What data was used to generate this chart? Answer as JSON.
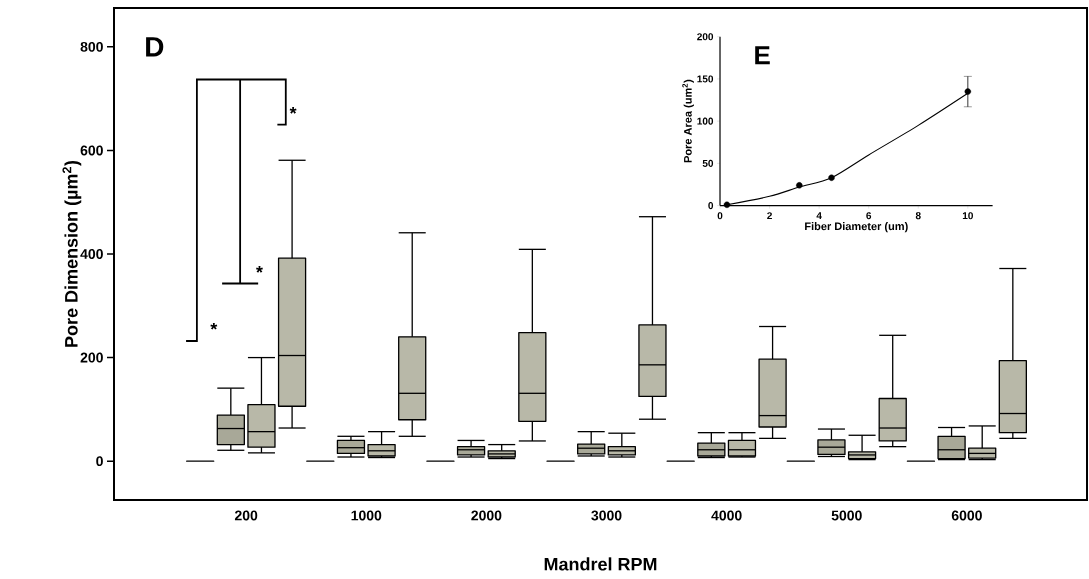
{
  "chart_data": [
    {
      "type": "box",
      "xlabel": "Mandrel RPM",
      "ylabel": "Pore Dimension (µm$^{2}$)",
      "categories": [
        "200",
        "1000",
        "2000",
        "3000",
        "4000",
        "5000",
        "6000"
      ],
      "ylim": [
        -75,
        875
      ],
      "yticks": [
        0,
        200,
        400,
        600,
        800
      ],
      "grid": false,
      "annotations": [
        "D",
        "*",
        "*",
        "*"
      ],
      "series": [
        {
          "color": "#000000",
          "boxes": [
            {
              "low": 0,
              "q1": 0,
              "median": 0,
              "q3": 0,
              "high": 0
            },
            {
              "low": 0,
              "q1": 0,
              "median": 0,
              "q3": 0,
              "high": 0
            },
            {
              "low": 0,
              "q1": 0,
              "median": 0,
              "q3": 0,
              "high": 0
            },
            {
              "low": 0,
              "q1": 0,
              "median": 0,
              "q3": 0,
              "high": 0
            },
            {
              "low": 0,
              "q1": 0,
              "median": 0,
              "q3": 0,
              "high": 0
            },
            {
              "low": 0,
              "q1": 0,
              "median": 0,
              "q3": 0,
              "high": 0
            },
            {
              "low": 0,
              "q1": 0,
              "median": 0,
              "q3": 0,
              "high": 0
            }
          ]
        },
        {
          "color": "#a8a898",
          "boxes": [
            {
              "low": 21,
              "q1": 32,
              "median": 63,
              "q3": 89,
              "high": 141
            },
            {
              "low": 8,
              "q1": 15,
              "median": 26,
              "q3": 40,
              "high": 48
            },
            {
              "low": 8,
              "q1": 12,
              "median": 22,
              "q3": 28,
              "high": 40
            },
            {
              "low": 10,
              "q1": 14,
              "median": 25,
              "q3": 33,
              "high": 57
            },
            {
              "low": 7,
              "q1": 10,
              "median": 22,
              "q3": 35,
              "high": 55
            },
            {
              "low": 9,
              "q1": 13,
              "median": 27,
              "q3": 41,
              "high": 62
            },
            {
              "low": 3,
              "q1": 5,
              "median": 22,
              "q3": 48,
              "high": 65
            }
          ]
        },
        {
          "color": "#b8b8a8",
          "boxes": [
            {
              "low": 16,
              "q1": 27,
              "median": 57,
              "q3": 109,
              "high": 200
            },
            {
              "low": 7,
              "q1": 10,
              "median": 20,
              "q3": 32,
              "high": 57
            },
            {
              "low": 5,
              "q1": 8,
              "median": 14,
              "q3": 20,
              "high": 32
            },
            {
              "low": 8,
              "q1": 12,
              "median": 20,
              "q3": 28,
              "high": 54
            },
            {
              "low": 8,
              "q1": 10,
              "median": 22,
              "q3": 40,
              "high": 55
            },
            {
              "low": 3,
              "q1": 5,
              "median": 12,
              "q3": 18,
              "high": 50
            },
            {
              "low": 3,
              "q1": 6,
              "median": 15,
              "q3": 25,
              "high": 68
            }
          ]
        },
        {
          "color": "#b8b8a8",
          "boxes": [
            {
              "low": 64,
              "q1": 106,
              "median": 204,
              "q3": 392,
              "high": 581
            },
            {
              "low": 48,
              "q1": 80,
              "median": 131,
              "q3": 240,
              "high": 441
            },
            {
              "low": 39,
              "q1": 77,
              "median": 131,
              "q3": 248,
              "high": 409
            },
            {
              "low": 81,
              "q1": 125,
              "median": 186,
              "q3": 263,
              "high": 472
            },
            {
              "low": 44,
              "q1": 66,
              "median": 88,
              "q3": 197,
              "high": 260
            },
            {
              "low": 28,
              "q1": 39,
              "median": 64,
              "q3": 121,
              "high": 243
            },
            {
              "low": 44,
              "q1": 55,
              "median": 92,
              "q3": 194,
              "high": 372
            }
          ]
        }
      ]
    },
    {
      "type": "scatter",
      "xlabel": "Fiber Diameter (um)",
      "ylabel": "Pore Area (um$^{2}$)",
      "xlim": [
        0,
        11
      ],
      "ylim": [
        0,
        200
      ],
      "xticks": [
        0,
        2,
        4,
        6,
        8,
        10
      ],
      "yticks": [
        0,
        50,
        100,
        150,
        200
      ],
      "grid": false,
      "annotations": [
        "E"
      ],
      "series": [
        {
          "type": "scatter",
          "marker": "circle",
          "color": "#000000",
          "x": [
            0.28,
            3.2,
            4.5,
            10
          ],
          "values": [
            1,
            24,
            33,
            135
          ],
          "errors": [
            null,
            null,
            null,
            18
          ]
        },
        {
          "type": "line",
          "marker": "none",
          "color": "#000000",
          "x": [
            0.28,
            2,
            3.2,
            4.5,
            6,
            8,
            10
          ],
          "values": [
            1,
            11,
            22,
            33,
            60,
            95,
            133
          ]
        }
      ]
    }
  ]
}
